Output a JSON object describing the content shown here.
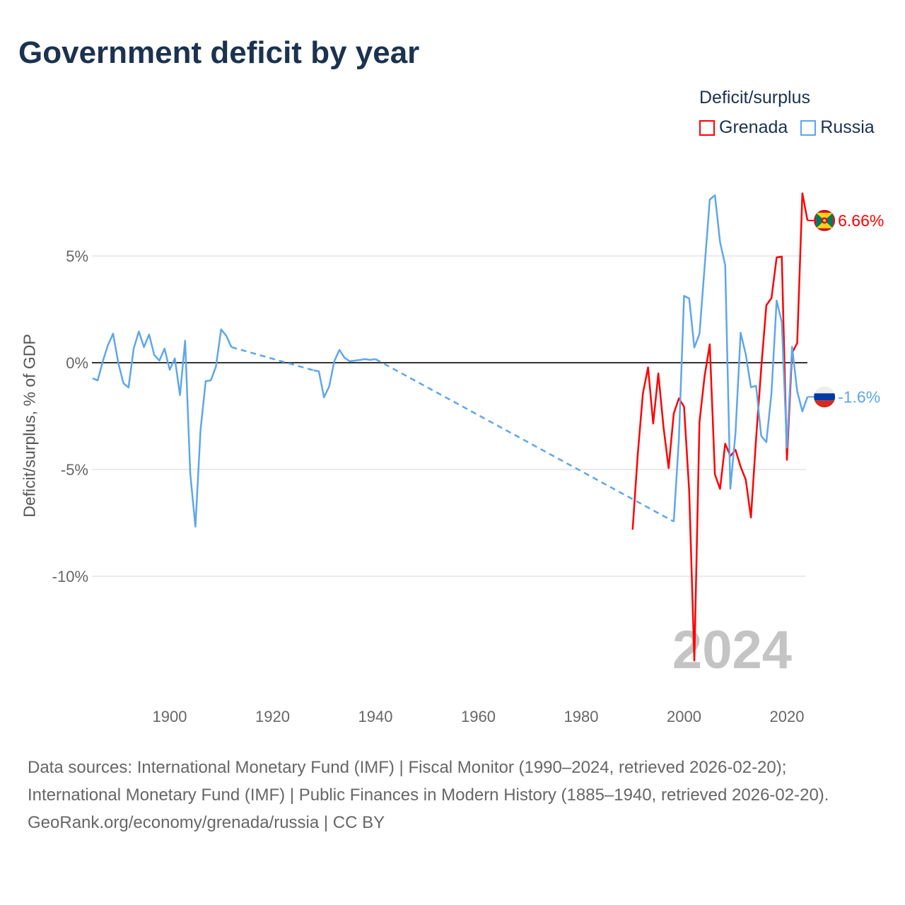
{
  "chart_data": {
    "type": "line",
    "title": "Government deficit by year",
    "xlabel": "",
    "ylabel": "Deficit/surplus, % of GDP",
    "xlim": [
      1885,
      2024
    ],
    "ylim": [
      -14,
      8
    ],
    "grid": true,
    "x_ticks": [
      1900,
      1920,
      1940,
      1960,
      1980,
      2000,
      2020
    ],
    "x_tick_labels": [
      "1900",
      "1920",
      "1940",
      "1960",
      "1980",
      "2000",
      "2020"
    ],
    "y_ticks": [
      5,
      0,
      -5,
      -10
    ],
    "y_tick_labels": [
      "5%",
      "0%",
      "-5%",
      "-10%"
    ],
    "legend_title": "Deficit/surplus",
    "legend_position": "top-right",
    "year_watermark": "2024",
    "series": [
      {
        "name": "Grenada",
        "color": "#ff0000",
        "end_label": "6.66%",
        "x": [
          1990,
          1991,
          1992,
          1993,
          1994,
          1995,
          1996,
          1997,
          1998,
          1999,
          2000,
          2001,
          2002,
          2003,
          2004,
          2005,
          2006,
          2007,
          2008,
          2009,
          2010,
          2011,
          2012,
          2013,
          2014,
          2015,
          2016,
          2017,
          2018,
          2019,
          2020,
          2021,
          2022,
          2023,
          2024
        ],
        "values": [
          -7.82,
          -4.29,
          -1.44,
          -0.22,
          -2.85,
          -0.5,
          -3.0,
          -4.94,
          -2.38,
          -1.67,
          -2.06,
          -6.02,
          -13.95,
          -2.78,
          -0.62,
          0.86,
          -5.23,
          -5.91,
          -3.79,
          -4.37,
          -4.08,
          -4.87,
          -5.48,
          -7.25,
          -3.57,
          -0.26,
          2.69,
          3.03,
          4.93,
          4.97,
          -4.55,
          0.46,
          0.92,
          7.93,
          6.66
        ]
      },
      {
        "name": "Russia",
        "color": "#5ea6ec",
        "end_label": "-1.6%",
        "x": [
          1885,
          1886,
          1887,
          1888,
          1889,
          1890,
          1891,
          1892,
          1893,
          1894,
          1895,
          1896,
          1897,
          1898,
          1899,
          1900,
          1901,
          1902,
          1903,
          1904,
          1905,
          1906,
          1907,
          1908,
          1909,
          1910,
          1911,
          1912,
          1928,
          1929,
          1930,
          1931,
          1932,
          1933,
          1934,
          1935,
          1936,
          1937,
          1938,
          1939,
          1940,
          1998,
          1999,
          2000,
          2001,
          2002,
          2003,
          2004,
          2005,
          2006,
          2007,
          2008,
          2009,
          2010,
          2011,
          2012,
          2013,
          2014,
          2015,
          2016,
          2017,
          2018,
          2019,
          2020,
          2021,
          2022,
          2023,
          2024
        ],
        "values": [
          -0.73,
          -0.83,
          0.07,
          0.83,
          1.36,
          0.0,
          -0.96,
          -1.16,
          0.66,
          1.46,
          0.73,
          1.32,
          0.36,
          0.1,
          0.66,
          -0.33,
          0.2,
          -1.52,
          1.03,
          -5.2,
          -7.68,
          -3.15,
          -0.86,
          -0.83,
          -0.17,
          1.56,
          1.26,
          0.73,
          -0.36,
          -0.4,
          -1.62,
          -1.12,
          0.07,
          0.6,
          0.23,
          0.07,
          0.1,
          0.13,
          0.17,
          0.13,
          0.17,
          -7.44,
          -3.57,
          3.13,
          3.01,
          0.71,
          1.35,
          4.5,
          7.64,
          7.84,
          5.65,
          4.57,
          -5.9,
          -3.29,
          1.4,
          0.39,
          -1.15,
          -1.08,
          -3.43,
          -3.72,
          -1.41,
          2.91,
          1.9,
          -3.98,
          0.75,
          -1.34,
          -2.28,
          -1.6
        ]
      }
    ]
  },
  "footer": {
    "sources": "Data sources: International Monetary Fund (IMF) | Fiscal Monitor (1990–2024, retrieved 2026-02-20); International Monetary Fund (IMF) | Public Finances in Modern History (1885–1940, retrieved 2026-02-20).",
    "credit": "GeoRank.org/economy/grenada/russia | CC BY"
  }
}
